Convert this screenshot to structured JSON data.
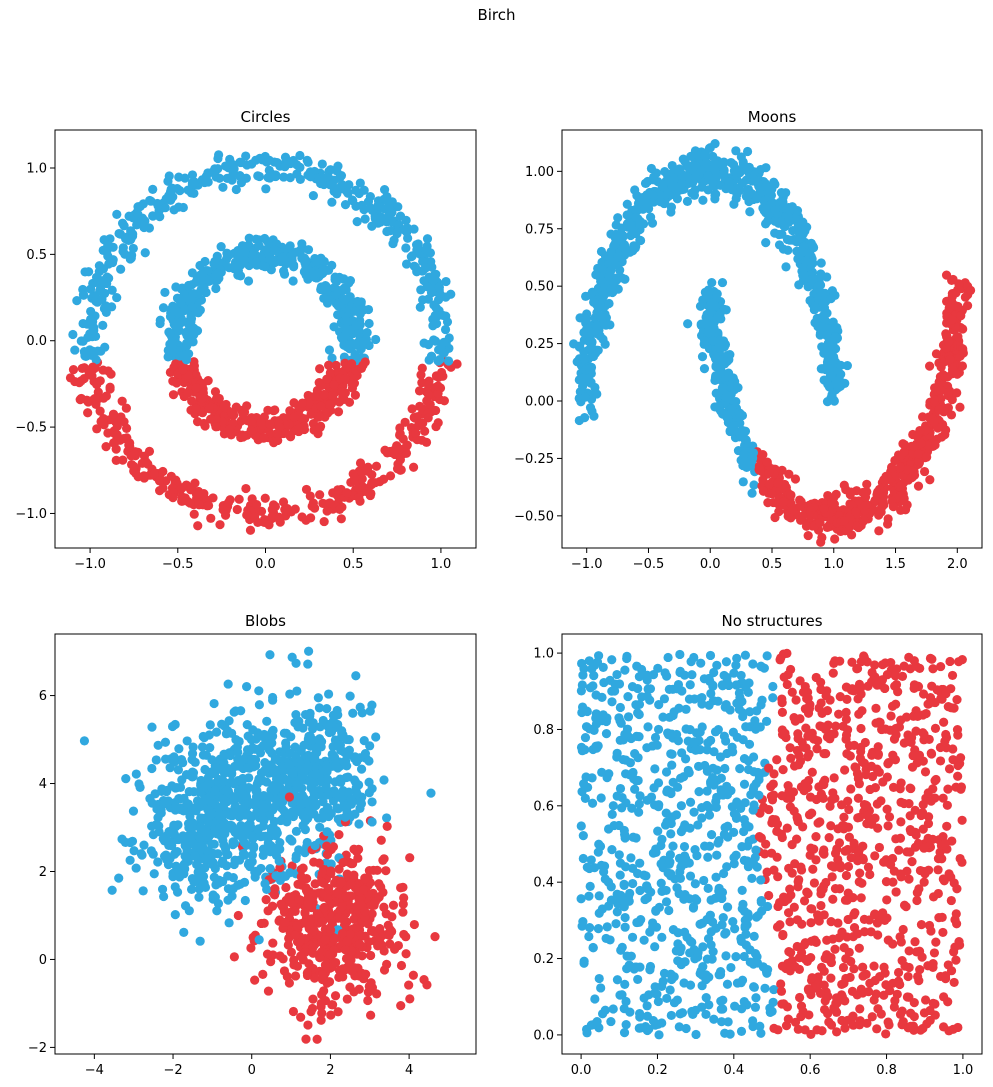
{
  "figure": {
    "suptitle": "Birch"
  },
  "colors": {
    "cluster_0": "#30a8df",
    "cluster_1": "#e8383f",
    "axes": "#000000"
  },
  "chart_data": [
    {
      "type": "scatter",
      "title": "Circles",
      "xlim": [
        -1.2,
        1.2
      ],
      "ylim": [
        -1.2,
        1.22
      ],
      "xticks": [
        "−1.0",
        "−0.5",
        "0.0",
        "0.5",
        "1.0"
      ],
      "xtick_values": [
        -1.0,
        -0.5,
        0.0,
        0.5,
        1.0
      ],
      "yticks": [
        "−1.0",
        "−0.5",
        "0.0",
        "0.5",
        "1.0"
      ],
      "ytick_values": [
        -1.0,
        -0.5,
        0.0,
        0.5,
        1.0
      ],
      "grid": false,
      "generator": "circles",
      "params": {
        "outer_radius": 1.0,
        "inner_radius": 0.5,
        "noise": 0.05,
        "n": 1500,
        "cluster_1_rule": "y < -0.12"
      },
      "clusters": [
        {
          "color": "#30a8df"
        },
        {
          "color": "#e8383f"
        }
      ]
    },
    {
      "type": "scatter",
      "title": "Moons",
      "xlim": [
        -1.2,
        2.2
      ],
      "ylim": [
        -0.64,
        1.18
      ],
      "xticks": [
        "−1.0",
        "−0.5",
        "0.0",
        "0.5",
        "1.0",
        "1.5",
        "2.0"
      ],
      "xtick_values": [
        -1.0,
        -0.5,
        0.0,
        0.5,
        1.0,
        1.5,
        2.0
      ],
      "yticks": [
        "−0.50",
        "−0.25",
        "0.00",
        "0.25",
        "0.50",
        "0.75",
        "1.00"
      ],
      "ytick_values": [
        -0.5,
        -0.25,
        0.0,
        0.25,
        0.5,
        0.75,
        1.0
      ],
      "grid": false,
      "generator": "moons",
      "params": {
        "noise": 0.05,
        "n": 1500,
        "cluster_1_rule": "lower moon with x > 0.38"
      },
      "clusters": [
        {
          "color": "#30a8df"
        },
        {
          "color": "#e8383f"
        }
      ]
    },
    {
      "type": "scatter",
      "title": "Blobs",
      "xlim": [
        -5.0,
        5.7
      ],
      "ylim": [
        -2.15,
        7.4
      ],
      "xticks": [
        "−4",
        "−2",
        "0",
        "2",
        "4"
      ],
      "xtick_values": [
        -4,
        -2,
        0,
        2,
        4
      ],
      "yticks": [
        "−2",
        "0",
        "2",
        "4",
        "6"
      ],
      "ytick_values": [
        -2,
        0,
        2,
        4,
        6
      ],
      "grid": false,
      "generator": "blobs",
      "params": {
        "centers": [
          [
            -1.0,
            3.2
          ],
          [
            1.2,
            4.0
          ],
          [
            2.0,
            0.8
          ]
        ],
        "std": [
          1.0,
          1.0,
          0.9
        ],
        "n": 1500
      },
      "clusters": [
        {
          "color": "#30a8df"
        },
        {
          "color": "#e8383f"
        }
      ]
    },
    {
      "type": "scatter",
      "title": "No structures",
      "xlim": [
        -0.05,
        1.05
      ],
      "ylim": [
        -0.05,
        1.05
      ],
      "xticks": [
        "0.0",
        "0.2",
        "0.4",
        "0.6",
        "0.8",
        "1.0"
      ],
      "xtick_values": [
        0.0,
        0.2,
        0.4,
        0.6,
        0.8,
        1.0
      ],
      "yticks": [
        "0.0",
        "0.2",
        "0.4",
        "0.6",
        "0.8",
        "1.0"
      ],
      "ytick_values": [
        0.0,
        0.2,
        0.4,
        0.6,
        0.8,
        1.0
      ],
      "grid": false,
      "generator": "uniform",
      "params": {
        "n": 1500,
        "cluster_1_rule": "x > ~0.5"
      },
      "clusters": [
        {
          "color": "#30a8df"
        },
        {
          "color": "#e8383f"
        }
      ]
    }
  ]
}
